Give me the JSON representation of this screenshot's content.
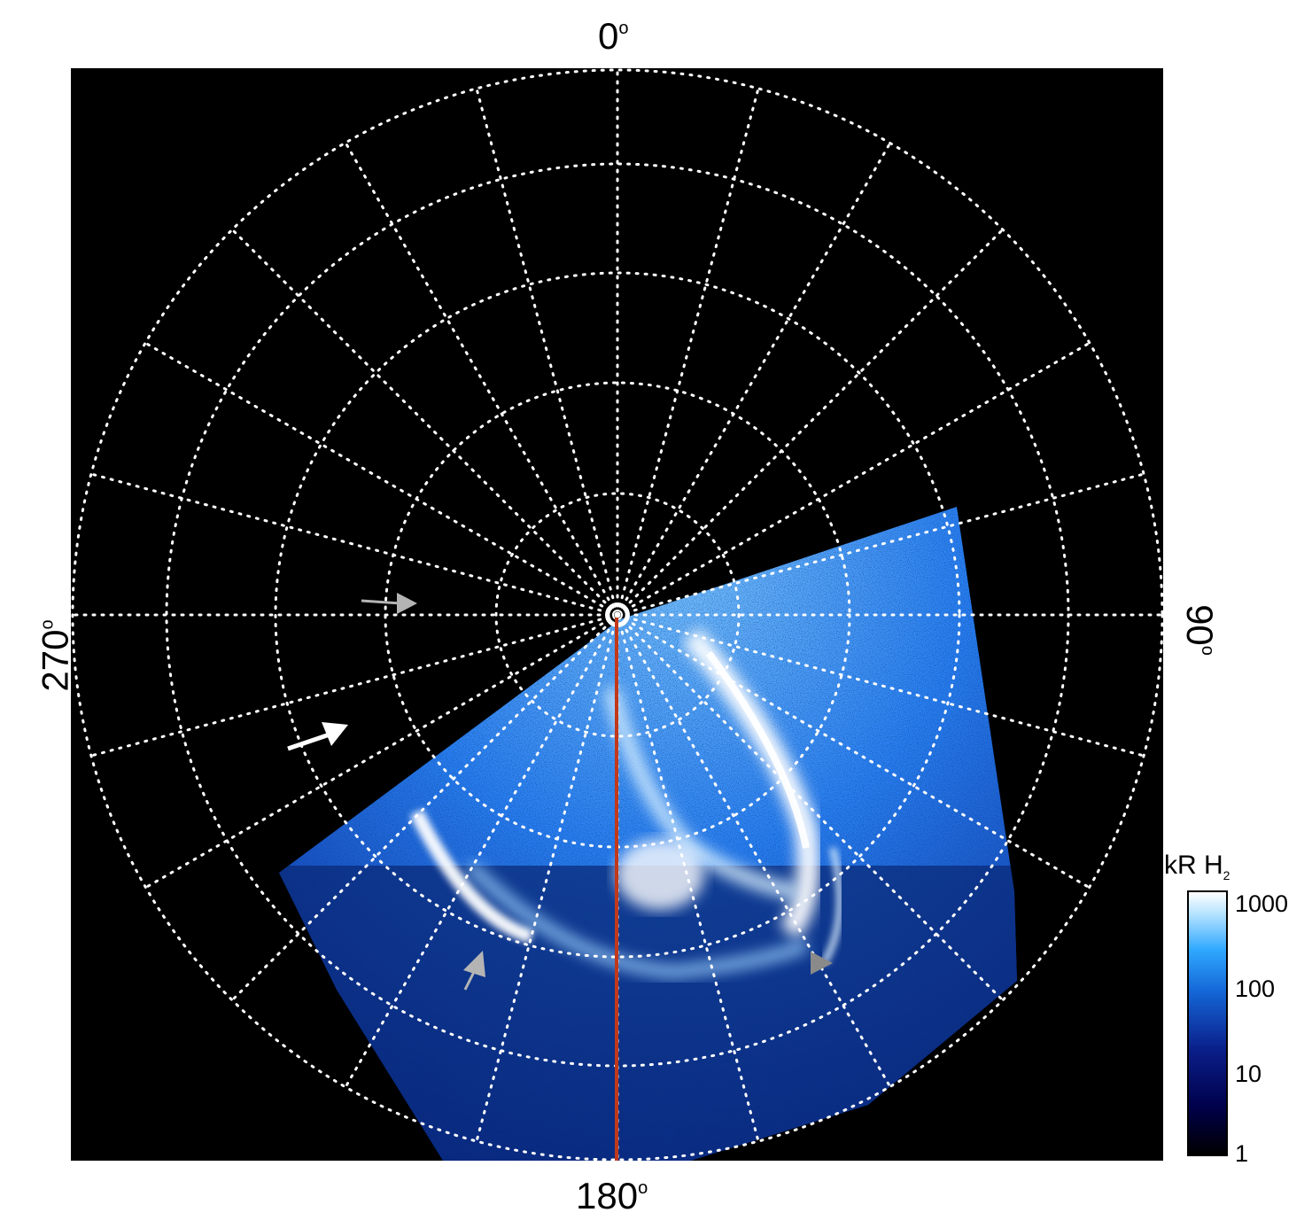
{
  "angle_labels": {
    "top": "0",
    "right": "90",
    "bottom": "180",
    "left": "270",
    "degree_symbol": "o"
  },
  "colorbar": {
    "title_main": "kR H",
    "title_sub": "2",
    "ticks": [
      "1000",
      "100",
      "10",
      "1"
    ]
  },
  "colors": {
    "background": "#000000",
    "grid": "#ffffff",
    "meridian_line": "#c1391b",
    "aurora_bright": "#ffffff",
    "aurora_mid": "#2f8fff",
    "aurora_dim": "#0a2a9a",
    "arrow_white": "#ffffff",
    "arrow_gray": "#b4b4b4"
  }
}
